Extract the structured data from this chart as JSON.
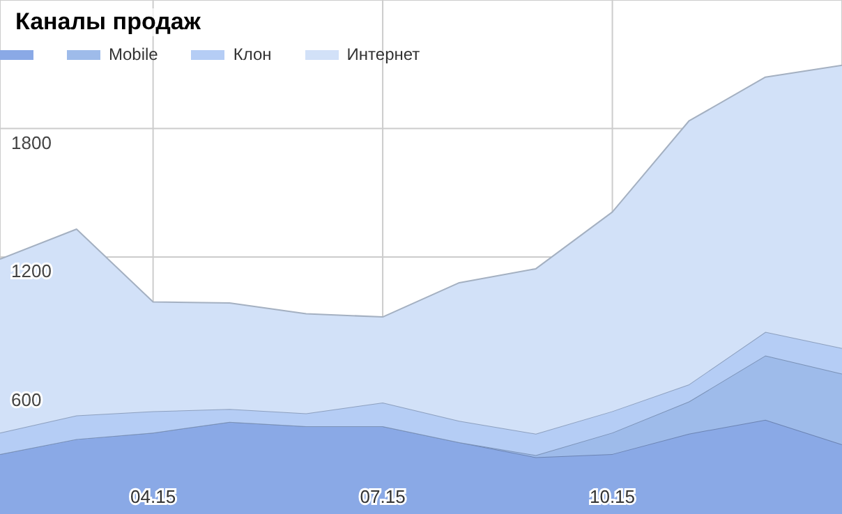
{
  "chart_data": {
    "type": "area",
    "title": "Каналы продаж",
    "stacked": true,
    "grid": true,
    "legend": "top left",
    "categories": [
      null,
      null,
      "04.15",
      null,
      null,
      "07.15",
      null,
      null,
      "10.15",
      null,
      null,
      null
    ],
    "ylim": [
      0,
      2400
    ],
    "yticks": [
      600,
      1200,
      1800
    ],
    "series": [
      {
        "color": "#8aa9e6",
        "values": [
          280,
          350,
          380,
          430,
          410,
          410,
          335,
          265,
          280,
          375,
          440,
          325
        ]
      },
      {
        "name": "Mobile",
        "color": "#9ebbea",
        "values": [
          0,
          0,
          0,
          0,
          0,
          0,
          0,
          10,
          100,
          150,
          300,
          330
        ]
      },
      {
        "name": "Клон",
        "color": "#b5cdf5",
        "values": [
          100,
          110,
          100,
          60,
          60,
          110,
          100,
          100,
          100,
          80,
          110,
          120
        ]
      },
      {
        "name": "Интернет",
        "color": "#d2e1f8",
        "values": [
          810,
          870,
          510,
          495,
          465,
          400,
          645,
          770,
          930,
          1230,
          1190,
          1320
        ]
      }
    ]
  }
}
